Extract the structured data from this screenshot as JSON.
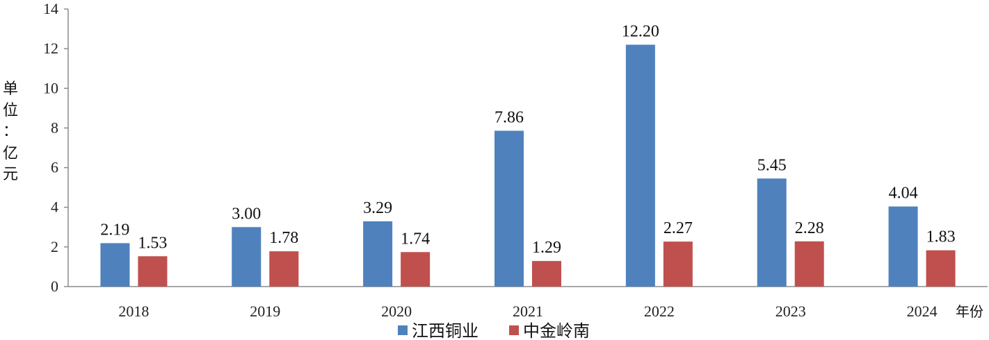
{
  "chart_data": {
    "type": "bar",
    "categories": [
      "2018",
      "2019",
      "2020",
      "2021",
      "2022",
      "2023",
      "2024"
    ],
    "series": [
      {
        "name": "江西铜业",
        "values": [
          2.19,
          3.0,
          3.29,
          7.86,
          12.2,
          5.45,
          4.04
        ],
        "color": "#4F81BD"
      },
      {
        "name": "中金岭南",
        "values": [
          1.53,
          1.78,
          1.74,
          1.29,
          2.27,
          2.28,
          1.83
        ],
        "color": "#C0504D"
      }
    ],
    "ylim": [
      0,
      14
    ],
    "yticks": [
      0,
      2,
      4,
      6,
      8,
      10,
      12,
      14
    ],
    "ylabel_chars": [
      "单",
      "位",
      "：",
      "亿",
      "元"
    ],
    "xunit": "年份",
    "legend_position": "bottom"
  }
}
